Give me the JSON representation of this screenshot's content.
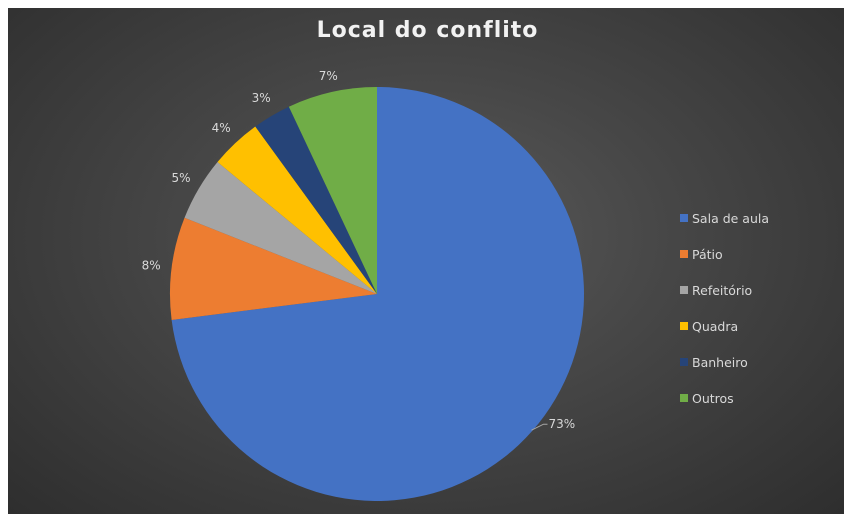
{
  "chart_data": {
    "type": "pie",
    "title": "Local do conflito",
    "categories": [
      "Sala de aula",
      "Pátio",
      "Refeitório",
      "Quadra",
      "Banheiro",
      "Outros"
    ],
    "values": [
      73,
      8,
      5,
      4,
      3,
      7
    ],
    "labels": [
      "73%",
      "8%",
      "5%",
      "4%",
      "3%",
      "7%"
    ],
    "colors": [
      "#4472c4",
      "#ed7d31",
      "#a5a5a5",
      "#ffc000",
      "#264478",
      "#70ad47"
    ],
    "legend_position": "right",
    "background": "#404040"
  }
}
